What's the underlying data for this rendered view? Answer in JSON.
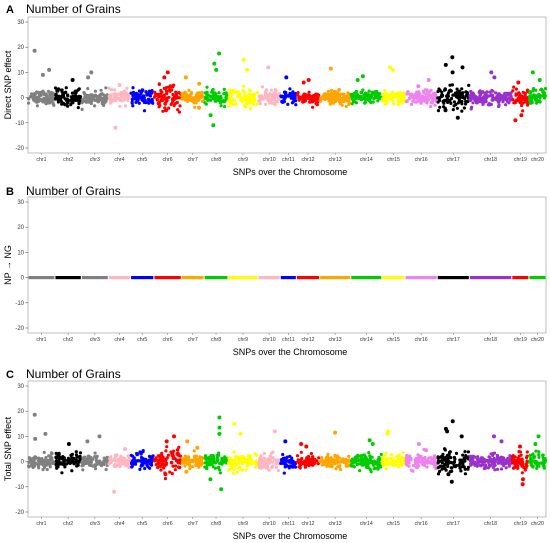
{
  "chart_data": [
    {
      "type": "scatter",
      "panel_label": "A",
      "title": "Number of Grains",
      "xlabel": "SNPs over the Chromosome",
      "ylabel": "Direct SNP effect",
      "ylim": [
        -22,
        32
      ],
      "yticks": [
        -20,
        -10,
        0,
        10,
        20,
        30
      ],
      "grid": false,
      "chromosomes": [
        "chr1",
        "chr2",
        "chr3",
        "chr4",
        "chr5",
        "chr6",
        "chr7",
        "chr8",
        "chr9",
        "chr10",
        "chr11",
        "chr12",
        "chr13",
        "chr14",
        "chr15",
        "chr16",
        "chr17",
        "chr18",
        "chr19",
        "chr20"
      ],
      "chromosome_colors": [
        "#808080",
        "#000000",
        "#808080",
        "#ffb6c1",
        "#0000ff",
        "#ff0000",
        "#ffa500",
        "#00cc00",
        "#ffff00",
        "#ffb6c1",
        "#0000ff",
        "#ff0000",
        "#ffa500",
        "#00cc00",
        "#ffff00",
        "#ee82ee",
        "#000000",
        "#9932cc",
        "#ff0000",
        "#00cc00"
      ],
      "band_spread": [
        3,
        4,
        3,
        3,
        4,
        5,
        3,
        3,
        4,
        3,
        3,
        3,
        3,
        3,
        3,
        3,
        5,
        3,
        4,
        4
      ],
      "highlights": [
        {
          "chr": "chr1",
          "y": 18.6
        },
        {
          "chr": "chr1",
          "y": 11
        },
        {
          "chr": "chr1",
          "y": 9
        },
        {
          "chr": "chr2",
          "y": 7
        },
        {
          "chr": "chr3",
          "y": 10
        },
        {
          "chr": "chr3",
          "y": 8
        },
        {
          "chr": "chr4",
          "y": -12
        },
        {
          "chr": "chr4",
          "y": 5
        },
        {
          "chr": "chr6",
          "y": 10
        },
        {
          "chr": "chr6",
          "y": 8
        },
        {
          "chr": "chr6",
          "y": -5
        },
        {
          "chr": "chr7",
          "y": 8
        },
        {
          "chr": "chr7",
          "y": 5.5
        },
        {
          "chr": "chr7",
          "y": -4
        },
        {
          "chr": "chr8",
          "y": 17.5
        },
        {
          "chr": "chr8",
          "y": 13.5
        },
        {
          "chr": "chr8",
          "y": 11
        },
        {
          "chr": "chr8",
          "y": -7
        },
        {
          "chr": "chr8",
          "y": -11
        },
        {
          "chr": "chr9",
          "y": 15
        },
        {
          "chr": "chr9",
          "y": 11
        },
        {
          "chr": "chr10",
          "y": 12
        },
        {
          "chr": "chr11",
          "y": 8
        },
        {
          "chr": "chr12",
          "y": 7
        },
        {
          "chr": "chr12",
          "y": 6
        },
        {
          "chr": "chr13",
          "y": 11.5
        },
        {
          "chr": "chr14",
          "y": 8.5
        },
        {
          "chr": "chr14",
          "y": 7
        },
        {
          "chr": "chr15",
          "y": 12
        },
        {
          "chr": "chr15",
          "y": 11
        },
        {
          "chr": "chr16",
          "y": 7
        },
        {
          "chr": "chr16",
          "y": 4.5
        },
        {
          "chr": "chr17",
          "y": 16
        },
        {
          "chr": "chr17",
          "y": 13
        },
        {
          "chr": "chr17",
          "y": 12
        },
        {
          "chr": "chr17",
          "y": 10
        },
        {
          "chr": "chr17",
          "y": -8
        },
        {
          "chr": "chr17",
          "y": -5
        },
        {
          "chr": "chr18",
          "y": 10
        },
        {
          "chr": "chr18",
          "y": 8
        },
        {
          "chr": "chr19",
          "y": 6
        },
        {
          "chr": "chr19",
          "y": -7
        },
        {
          "chr": "chr19",
          "y": -9
        },
        {
          "chr": "chr20",
          "y": 10
        },
        {
          "chr": "chr20",
          "y": 7
        }
      ]
    },
    {
      "type": "scatter",
      "panel_label": "B",
      "title": "Number of Grains",
      "xlabel": "SNPs over the Chromosome",
      "ylabel": "NP → NG",
      "ylim": [
        -22,
        32
      ],
      "yticks": [
        -20,
        -10,
        0,
        10,
        20,
        30
      ],
      "grid": false,
      "chromosomes": [
        "chr1",
        "chr2",
        "chr3",
        "chr4",
        "chr5",
        "chr6",
        "chr7",
        "chr8",
        "chr9",
        "chr10",
        "chr11",
        "chr12",
        "chr13",
        "chr14",
        "chr15",
        "chr16",
        "chr17",
        "chr18",
        "chr19",
        "chr20"
      ],
      "chromosome_colors": [
        "#808080",
        "#000000",
        "#808080",
        "#ffb6c1",
        "#0000ff",
        "#ff0000",
        "#ffa500",
        "#00cc00",
        "#ffff00",
        "#ffb6c1",
        "#0000ff",
        "#ff0000",
        "#ffa500",
        "#00cc00",
        "#ffff00",
        "#ee82ee",
        "#000000",
        "#9932cc",
        "#ff0000",
        "#00cc00"
      ],
      "band_spread": [
        0,
        0,
        0,
        0,
        0,
        0,
        0,
        0,
        0,
        0,
        0,
        0,
        0,
        0,
        0,
        0,
        0,
        0,
        0,
        0
      ],
      "highlights": []
    },
    {
      "type": "scatter",
      "panel_label": "C",
      "title": "Number of Grains",
      "xlabel": "SNPs over the Chromosome",
      "ylabel": "Total SNP effect",
      "ylim": [
        -22,
        32
      ],
      "yticks": [
        -20,
        -10,
        0,
        10,
        20,
        30
      ],
      "grid": false,
      "chromosomes": [
        "chr1",
        "chr2",
        "chr3",
        "chr4",
        "chr5",
        "chr6",
        "chr7",
        "chr8",
        "chr9",
        "chr10",
        "chr11",
        "chr12",
        "chr13",
        "chr14",
        "chr15",
        "chr16",
        "chr17",
        "chr18",
        "chr19",
        "chr20"
      ],
      "chromosome_colors": [
        "#808080",
        "#000000",
        "#808080",
        "#ffb6c1",
        "#0000ff",
        "#ff0000",
        "#ffa500",
        "#00cc00",
        "#ffff00",
        "#ffb6c1",
        "#0000ff",
        "#ff0000",
        "#ffa500",
        "#00cc00",
        "#ffff00",
        "#ee82ee",
        "#000000",
        "#9932cc",
        "#ff0000",
        "#00cc00"
      ],
      "band_spread": [
        3,
        4,
        3,
        3,
        4,
        5,
        3,
        3,
        4,
        3,
        3,
        3,
        3,
        3,
        3,
        3,
        5,
        3,
        4,
        4
      ],
      "highlights": [
        {
          "chr": "chr1",
          "y": 18.6
        },
        {
          "chr": "chr1",
          "y": 11
        },
        {
          "chr": "chr1",
          "y": 9
        },
        {
          "chr": "chr2",
          "y": 7
        },
        {
          "chr": "chr3",
          "y": 10
        },
        {
          "chr": "chr3",
          "y": 8
        },
        {
          "chr": "chr4",
          "y": -12
        },
        {
          "chr": "chr4",
          "y": 5
        },
        {
          "chr": "chr6",
          "y": 10
        },
        {
          "chr": "chr6",
          "y": 8
        },
        {
          "chr": "chr6",
          "y": -5
        },
        {
          "chr": "chr7",
          "y": 8
        },
        {
          "chr": "chr7",
          "y": 5.5
        },
        {
          "chr": "chr7",
          "y": -4
        },
        {
          "chr": "chr8",
          "y": 17.5
        },
        {
          "chr": "chr8",
          "y": 13.5
        },
        {
          "chr": "chr8",
          "y": 11
        },
        {
          "chr": "chr8",
          "y": -7
        },
        {
          "chr": "chr8",
          "y": -11
        },
        {
          "chr": "chr9",
          "y": 15
        },
        {
          "chr": "chr9",
          "y": 11
        },
        {
          "chr": "chr10",
          "y": 12
        },
        {
          "chr": "chr11",
          "y": 8
        },
        {
          "chr": "chr12",
          "y": 7
        },
        {
          "chr": "chr12",
          "y": 6
        },
        {
          "chr": "chr13",
          "y": 11.5
        },
        {
          "chr": "chr14",
          "y": 8.5
        },
        {
          "chr": "chr14",
          "y": 7
        },
        {
          "chr": "chr15",
          "y": 12
        },
        {
          "chr": "chr15",
          "y": 11
        },
        {
          "chr": "chr16",
          "y": 7
        },
        {
          "chr": "chr16",
          "y": 4.5
        },
        {
          "chr": "chr17",
          "y": 16
        },
        {
          "chr": "chr17",
          "y": 13
        },
        {
          "chr": "chr17",
          "y": 12
        },
        {
          "chr": "chr17",
          "y": 10
        },
        {
          "chr": "chr17",
          "y": -8
        },
        {
          "chr": "chr17",
          "y": -5
        },
        {
          "chr": "chr18",
          "y": 10
        },
        {
          "chr": "chr18",
          "y": 8
        },
        {
          "chr": "chr19",
          "y": 6
        },
        {
          "chr": "chr19",
          "y": -7
        },
        {
          "chr": "chr19",
          "y": -9
        },
        {
          "chr": "chr20",
          "y": 10
        },
        {
          "chr": "chr20",
          "y": 7
        }
      ]
    }
  ]
}
